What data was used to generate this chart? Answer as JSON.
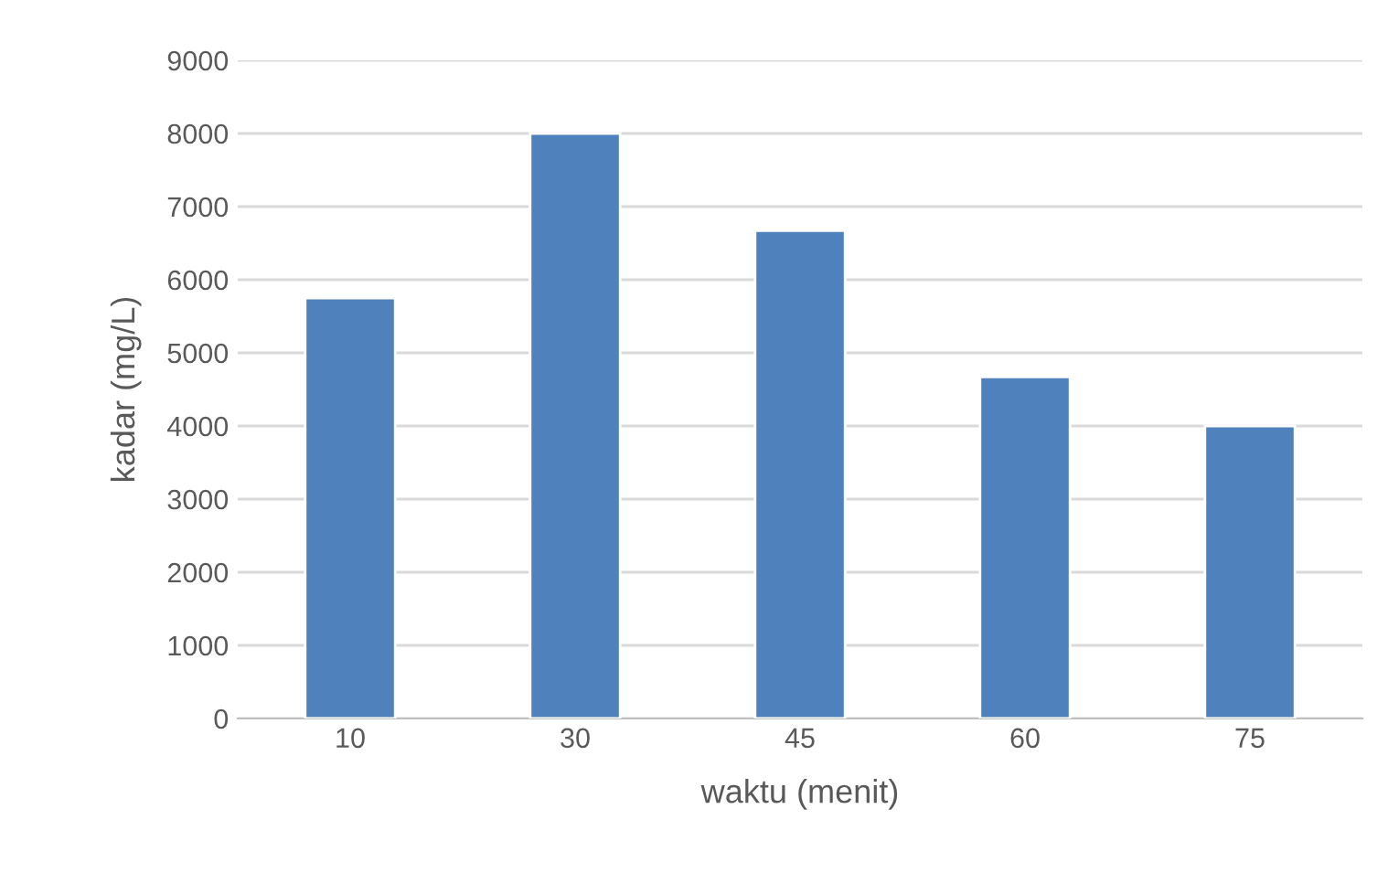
{
  "chart_data": {
    "type": "bar",
    "xlabel": "waktu (menit)",
    "ylabel": "kadar (mg/L)",
    "categories": [
      "10",
      "30",
      "45",
      "60",
      "75"
    ],
    "values": [
      5750,
      8000,
      6670,
      4670,
      4000
    ],
    "color": "#4f81bd",
    "ylim": [
      0,
      9000
    ],
    "yticks": [
      0,
      1000,
      2000,
      3000,
      4000,
      5000,
      6000,
      7000,
      8000,
      9000
    ],
    "grid": "y",
    "legend": false
  }
}
